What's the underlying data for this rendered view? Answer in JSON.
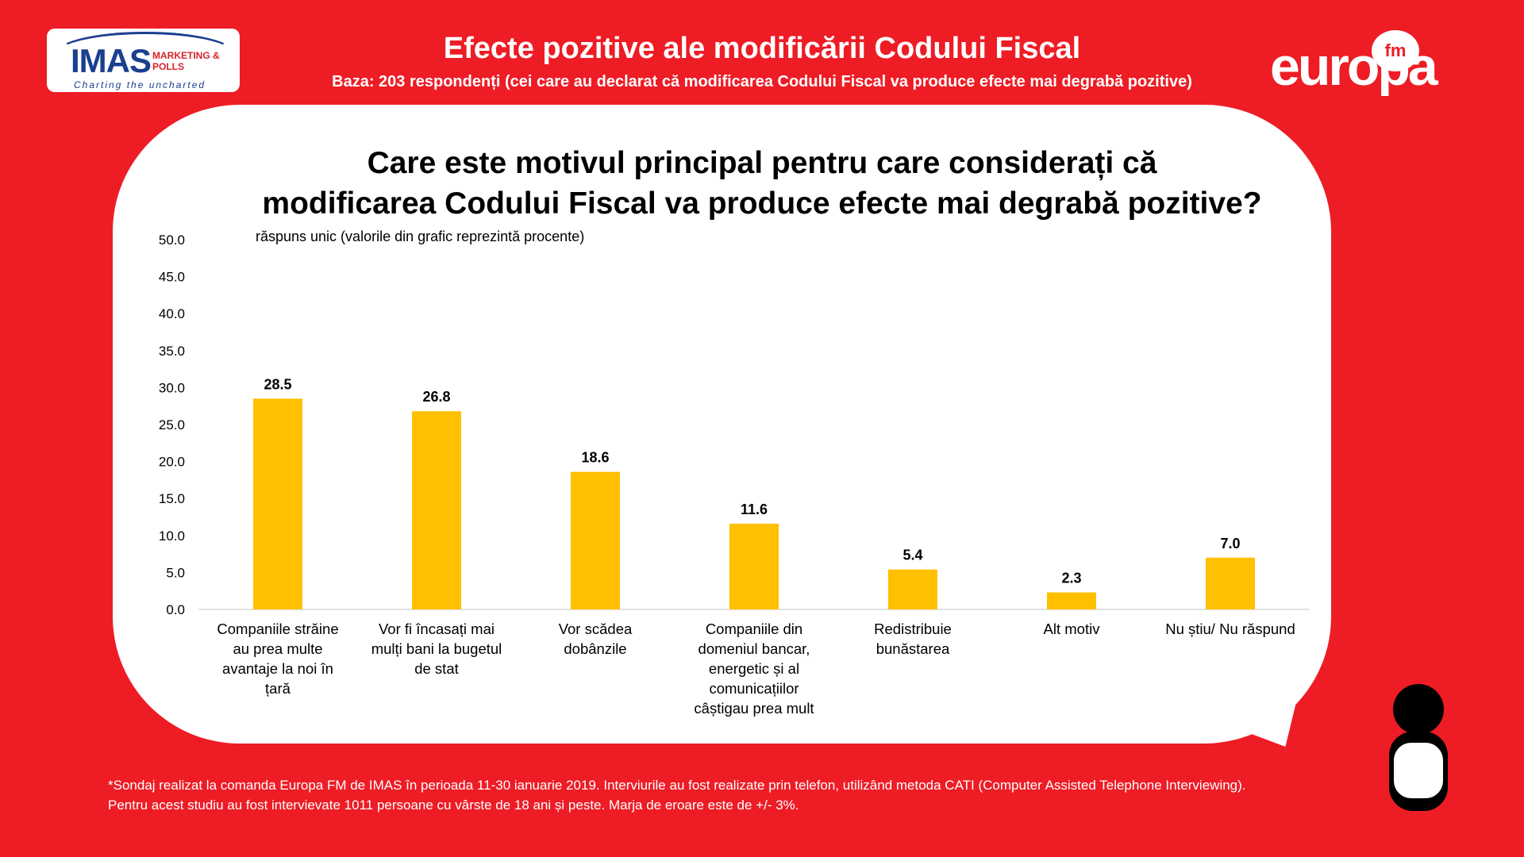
{
  "header": {
    "title": "Efecte pozitive ale modificării Codului Fiscal",
    "subtitle": "Baza: 203 respondenți (cei care au declarat că modificarea Codului Fiscal va produce efecte mai degrabă pozitive)"
  },
  "logos": {
    "imas_word": "IMAS",
    "imas_sub": "MARKETING & POLLS",
    "imas_tagline": "Charting the uncharted",
    "europa_word": "europa",
    "europa_fm": "fm"
  },
  "question": {
    "line1": "Care este motivul principal pentru care considerați că",
    "line2": "modificarea Codului Fiscal va produce efecte mai degrabă pozitive?"
  },
  "note": "răspuns unic (valorile din grafic reprezintă procente)",
  "chart_data": {
    "type": "bar",
    "categories": [
      [
        "Companiile străine",
        "au prea multe",
        "avantaje la noi în",
        "țară"
      ],
      [
        "Vor fi încasați mai",
        "mulți bani la bugetul",
        "de stat"
      ],
      [
        "Vor scădea",
        "dobânzile"
      ],
      [
        "Companiile din",
        "domeniul bancar,",
        "energetic și al",
        "comunicațiilor",
        "câștigau prea mult"
      ],
      [
        "Redistribuie",
        "bunăstarea"
      ],
      [
        "Alt motiv"
      ],
      [
        "Nu știu/ Nu răspund"
      ]
    ],
    "values": [
      28.5,
      26.8,
      18.6,
      11.6,
      5.4,
      2.3,
      7.0
    ],
    "value_labels": [
      "28.5",
      "26.8",
      "18.6",
      "11.6",
      "5.4",
      "2.3",
      "7.0"
    ],
    "ylim": [
      0,
      50
    ],
    "yticks": [
      "0.0",
      "5.0",
      "10.0",
      "15.0",
      "20.0",
      "25.0",
      "30.0",
      "35.0",
      "40.0",
      "45.0",
      "50.0"
    ],
    "grid": false,
    "legend": "none",
    "bar_color": "#ffc000"
  },
  "footnote": {
    "line1": "*Sondaj realizat la comanda Europa FM de IMAS în perioada 11-30 ianuarie 2019. Interviurile au fost realizate prin telefon, utilizând metoda CATI (Computer Assisted Telephone Interviewing).",
    "line2": "Pentru acest studiu au fost intervievate 1011 persoane cu vârste de 18 ani și peste. Marja de eroare este de +/- 3%."
  },
  "colors": {
    "background": "#ee1c25",
    "panel": "#ffffff",
    "text": "#000000"
  }
}
